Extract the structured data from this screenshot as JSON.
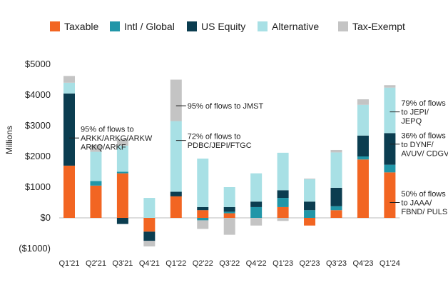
{
  "chart_data": {
    "type": "bar",
    "stacked": true,
    "ylabel": "Millions",
    "ylim": [
      -1000,
      5000
    ],
    "yticks": [
      -1000,
      0,
      1000,
      2000,
      3000,
      4000,
      5000
    ],
    "ytick_labels": [
      "($1000)",
      "$0",
      "$1000",
      "$2000",
      "$3000",
      "$4000",
      "$5000"
    ],
    "legend_position": "top",
    "grid": false,
    "categories": [
      "Q1'21",
      "Q2'21",
      "Q3'21",
      "Q4'21",
      "Q1'22",
      "Q2'22",
      "Q3'22",
      "Q4'22",
      "Q1'23",
      "Q2'23",
      "Q3'23",
      "Q4'23",
      "Q1'24"
    ],
    "series": [
      {
        "name": "Taxable",
        "color": "#f26522",
        "values": [
          1700,
          1050,
          1450,
          -450,
          700,
          250,
          150,
          0,
          350,
          -250,
          250,
          1900,
          1480
        ]
      },
      {
        "name": "Intl / Global",
        "color": "#2196a8",
        "values": [
          0,
          150,
          50,
          0,
          0,
          -80,
          50,
          350,
          300,
          250,
          130,
          100,
          250
        ]
      },
      {
        "name": "US Equity",
        "color": "#0b3d50",
        "values": [
          2350,
          0,
          -200,
          -300,
          150,
          100,
          150,
          180,
          250,
          280,
          600,
          680,
          1030
        ]
      },
      {
        "name": "Alternative",
        "color": "#a8e0e5",
        "values": [
          350,
          950,
          850,
          650,
          2300,
          1580,
          650,
          920,
          1220,
          730,
          1150,
          1000,
          1480
        ]
      },
      {
        "name": "Tax-Exempt",
        "color": "#c4c4c4",
        "values": [
          220,
          230,
          220,
          -180,
          1350,
          -280,
          -550,
          -250,
          -100,
          20,
          80,
          180,
          80
        ]
      }
    ],
    "annotations": [
      {
        "bar": 0,
        "value": 2600,
        "lines": [
          "95% of flows to",
          "ARKK/ARKG/ARKW",
          "ARKQ/ARKF"
        ]
      },
      {
        "bar": 4,
        "value": 3650,
        "lines": [
          "95% of flows to JMST"
        ]
      },
      {
        "bar": 4,
        "value": 2520,
        "lines": [
          "72% of flows to",
          "PDBC/JEPI/FTGC"
        ]
      },
      {
        "bar": 12,
        "value": 3450,
        "lines": [
          "79% of flows",
          "to JEPI/",
          "JEPQ"
        ]
      },
      {
        "bar": 12,
        "value": 2400,
        "lines": [
          "36% of flows",
          "to DYNF/",
          "AVUV/ CDGV"
        ]
      },
      {
        "bar": 12,
        "value": 500,
        "lines": [
          "50% of flows",
          "to JAAA/",
          "FBND/ PULS"
        ]
      }
    ]
  }
}
